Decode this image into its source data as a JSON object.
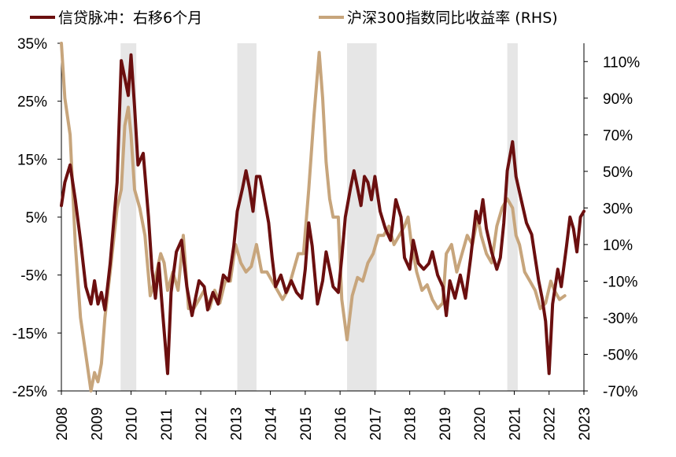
{
  "chart_data": {
    "type": "line",
    "title": "",
    "legend_position": "top",
    "series": [
      {
        "name": "信贷脉冲：右移6个月",
        "axis": "left",
        "color": "#6b0f0f",
        "points": [
          [
            2008.0,
            7
          ],
          [
            2008.1,
            11
          ],
          [
            2008.25,
            14
          ],
          [
            2008.4,
            8
          ],
          [
            2008.55,
            1
          ],
          [
            2008.7,
            -7
          ],
          [
            2008.85,
            -10
          ],
          [
            2008.95,
            -6
          ],
          [
            2009.05,
            -10
          ],
          [
            2009.15,
            -8
          ],
          [
            2009.25,
            -11
          ],
          [
            2009.4,
            -3
          ],
          [
            2009.6,
            11
          ],
          [
            2009.72,
            32
          ],
          [
            2009.82,
            29
          ],
          [
            2009.92,
            26
          ],
          [
            2010.0,
            33
          ],
          [
            2010.1,
            24
          ],
          [
            2010.2,
            14
          ],
          [
            2010.35,
            16
          ],
          [
            2010.5,
            5
          ],
          [
            2010.6,
            -4
          ],
          [
            2010.7,
            -9
          ],
          [
            2010.8,
            -3
          ],
          [
            2010.9,
            -11
          ],
          [
            2011.05,
            -22
          ],
          [
            2011.15,
            -8
          ],
          [
            2011.3,
            -1
          ],
          [
            2011.45,
            1
          ],
          [
            2011.6,
            -7
          ],
          [
            2011.75,
            -12
          ],
          [
            2011.85,
            -9
          ],
          [
            2011.95,
            -6
          ],
          [
            2012.1,
            -7
          ],
          [
            2012.2,
            -11
          ],
          [
            2012.35,
            -8
          ],
          [
            2012.5,
            -10
          ],
          [
            2012.65,
            -5
          ],
          [
            2012.8,
            -6
          ],
          [
            2012.95,
            0
          ],
          [
            2013.05,
            6
          ],
          [
            2013.2,
            10
          ],
          [
            2013.3,
            13
          ],
          [
            2013.4,
            10
          ],
          [
            2013.5,
            6
          ],
          [
            2013.6,
            12
          ],
          [
            2013.7,
            12
          ],
          [
            2013.8,
            9
          ],
          [
            2013.95,
            4
          ],
          [
            2014.05,
            -2
          ],
          [
            2014.15,
            -7
          ],
          [
            2014.3,
            -5
          ],
          [
            2014.45,
            -8
          ],
          [
            2014.6,
            -6
          ],
          [
            2014.75,
            -8
          ],
          [
            2014.9,
            -9
          ],
          [
            2015.0,
            -4
          ],
          [
            2015.1,
            4
          ],
          [
            2015.2,
            0
          ],
          [
            2015.35,
            -10
          ],
          [
            2015.5,
            -6
          ],
          [
            2015.6,
            -1
          ],
          [
            2015.7,
            -4
          ],
          [
            2015.8,
            -7
          ],
          [
            2015.95,
            -8
          ],
          [
            2016.05,
            -2
          ],
          [
            2016.15,
            5
          ],
          [
            2016.3,
            10
          ],
          [
            2016.4,
            13
          ],
          [
            2016.5,
            10
          ],
          [
            2016.6,
            7
          ],
          [
            2016.7,
            12
          ],
          [
            2016.8,
            11
          ],
          [
            2016.9,
            8
          ],
          [
            2017.0,
            12
          ],
          [
            2017.15,
            6
          ],
          [
            2017.3,
            3
          ],
          [
            2017.45,
            1
          ],
          [
            2017.6,
            8
          ],
          [
            2017.75,
            5
          ],
          [
            2017.85,
            -2
          ],
          [
            2018.0,
            -4
          ],
          [
            2018.1,
            1
          ],
          [
            2018.25,
            -3
          ],
          [
            2018.4,
            -4
          ],
          [
            2018.55,
            -3
          ],
          [
            2018.65,
            -1
          ],
          [
            2018.8,
            -5
          ],
          [
            2018.95,
            -7
          ],
          [
            2019.05,
            -12
          ],
          [
            2019.15,
            -6
          ],
          [
            2019.3,
            -9
          ],
          [
            2019.45,
            -5
          ],
          [
            2019.6,
            -9
          ],
          [
            2019.75,
            -2
          ],
          [
            2019.9,
            6
          ],
          [
            2020.0,
            4
          ],
          [
            2020.1,
            8
          ],
          [
            2020.2,
            3
          ],
          [
            2020.35,
            -1
          ],
          [
            2020.5,
            -4
          ],
          [
            2020.6,
            -2
          ],
          [
            2020.7,
            4
          ],
          [
            2020.8,
            13
          ],
          [
            2020.95,
            18
          ],
          [
            2021.05,
            12
          ],
          [
            2021.2,
            8
          ],
          [
            2021.35,
            4
          ],
          [
            2021.5,
            2
          ],
          [
            2021.6,
            -2
          ],
          [
            2021.7,
            -6
          ],
          [
            2021.8,
            -9
          ],
          [
            2021.9,
            -13
          ],
          [
            2022.0,
            -22
          ],
          [
            2022.1,
            -10
          ],
          [
            2022.25,
            -4
          ],
          [
            2022.35,
            -7
          ],
          [
            2022.5,
            0
          ],
          [
            2022.6,
            5
          ],
          [
            2022.7,
            3
          ],
          [
            2022.8,
            -1
          ],
          [
            2022.9,
            5
          ],
          [
            2023.0,
            6
          ]
        ]
      },
      {
        "name": "沪深300指数同比收益率 (RHS)",
        "axis": "right",
        "color": "#c7a57c",
        "points": [
          [
            2008.0,
            120
          ],
          [
            2008.1,
            90
          ],
          [
            2008.25,
            70
          ],
          [
            2008.4,
            10
          ],
          [
            2008.55,
            -30
          ],
          [
            2008.7,
            -50
          ],
          [
            2008.85,
            -70
          ],
          [
            2008.95,
            -60
          ],
          [
            2009.05,
            -65
          ],
          [
            2009.15,
            -55
          ],
          [
            2009.25,
            -30
          ],
          [
            2009.4,
            -5
          ],
          [
            2009.6,
            30
          ],
          [
            2009.72,
            40
          ],
          [
            2009.82,
            75
          ],
          [
            2009.92,
            85
          ],
          [
            2010.0,
            70
          ],
          [
            2010.1,
            40
          ],
          [
            2010.25,
            30
          ],
          [
            2010.4,
            15
          ],
          [
            2010.55,
            -18
          ],
          [
            2010.7,
            -8
          ],
          [
            2010.85,
            5
          ],
          [
            2010.95,
            0
          ],
          [
            2011.05,
            -15
          ],
          [
            2011.2,
            -5
          ],
          [
            2011.35,
            -15
          ],
          [
            2011.5,
            15
          ],
          [
            2011.65,
            -25
          ],
          [
            2011.8,
            -25
          ],
          [
            2011.95,
            -20
          ],
          [
            2012.1,
            -15
          ],
          [
            2012.25,
            -25
          ],
          [
            2012.4,
            -15
          ],
          [
            2012.55,
            -22
          ],
          [
            2012.7,
            -10
          ],
          [
            2012.85,
            -10
          ],
          [
            2013.0,
            10
          ],
          [
            2013.15,
            0
          ],
          [
            2013.3,
            -5
          ],
          [
            2013.45,
            -2
          ],
          [
            2013.6,
            10
          ],
          [
            2013.75,
            -5
          ],
          [
            2013.9,
            -5
          ],
          [
            2014.05,
            -10
          ],
          [
            2014.2,
            -15
          ],
          [
            2014.35,
            -20
          ],
          [
            2014.5,
            -15
          ],
          [
            2014.65,
            -5
          ],
          [
            2014.8,
            5
          ],
          [
            2014.95,
            5
          ],
          [
            2015.1,
            40
          ],
          [
            2015.25,
            80
          ],
          [
            2015.4,
            115
          ],
          [
            2015.5,
            90
          ],
          [
            2015.6,
            55
          ],
          [
            2015.7,
            35
          ],
          [
            2015.8,
            25
          ],
          [
            2015.95,
            25
          ],
          [
            2016.05,
            -20
          ],
          [
            2016.2,
            -42
          ],
          [
            2016.35,
            -18
          ],
          [
            2016.5,
            -8
          ],
          [
            2016.65,
            -10
          ],
          [
            2016.8,
            0
          ],
          [
            2016.95,
            5
          ],
          [
            2017.1,
            15
          ],
          [
            2017.25,
            15
          ],
          [
            2017.4,
            20
          ],
          [
            2017.55,
            10
          ],
          [
            2017.7,
            15
          ],
          [
            2017.85,
            20
          ],
          [
            2017.95,
            25
          ],
          [
            2018.05,
            10
          ],
          [
            2018.2,
            -5
          ],
          [
            2018.35,
            -15
          ],
          [
            2018.5,
            -12
          ],
          [
            2018.65,
            -20
          ],
          [
            2018.8,
            -25
          ],
          [
            2018.95,
            -22
          ],
          [
            2019.05,
            5
          ],
          [
            2019.2,
            10
          ],
          [
            2019.35,
            -5
          ],
          [
            2019.5,
            5
          ],
          [
            2019.65,
            15
          ],
          [
            2019.8,
            10
          ],
          [
            2019.95,
            25
          ],
          [
            2020.05,
            15
          ],
          [
            2020.2,
            5
          ],
          [
            2020.35,
            0
          ],
          [
            2020.5,
            20
          ],
          [
            2020.65,
            30
          ],
          [
            2020.8,
            35
          ],
          [
            2020.95,
            30
          ],
          [
            2021.05,
            15
          ],
          [
            2021.15,
            10
          ],
          [
            2021.3,
            -5
          ],
          [
            2021.45,
            -10
          ],
          [
            2021.6,
            -15
          ],
          [
            2021.75,
            -25
          ],
          [
            2021.9,
            -22
          ],
          [
            2022.05,
            -10
          ],
          [
            2022.15,
            -15
          ],
          [
            2022.3,
            -20
          ],
          [
            2022.45,
            -18
          ]
        ]
      }
    ],
    "shaded_periods": [
      [
        2009.7,
        2010.15
      ],
      [
        2013.05,
        2013.6
      ],
      [
        2016.2,
        2017.05
      ],
      [
        2020.8,
        2021.1
      ]
    ],
    "x_ticks": [
      "2008",
      "2009",
      "2010",
      "2011",
      "2012",
      "2013",
      "2014",
      "2015",
      "2016",
      "2017",
      "2018",
      "2019",
      "2020",
      "2021",
      "2022",
      "2023"
    ],
    "y_left_ticks": [
      "35%",
      "25%",
      "15%",
      "5%",
      "-5%",
      "-15%",
      "-25%"
    ],
    "y_right_ticks": [
      "110%",
      "90%",
      "70%",
      "50%",
      "30%",
      "10%",
      "-10%",
      "-30%",
      "-50%",
      "-70%"
    ],
    "ylim_left": [
      -25,
      35
    ],
    "ylim_right": [
      -70,
      120
    ],
    "xlim": [
      2008,
      2023
    ]
  }
}
